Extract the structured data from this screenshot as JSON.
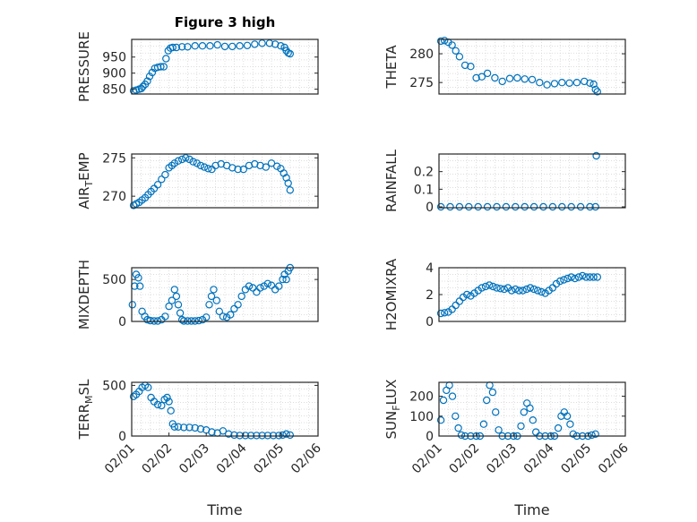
{
  "figure": {
    "title": "Figure 3 high",
    "xlabel": "Time"
  },
  "chart_data": [
    {
      "type": "scatter",
      "ylabel": "PRESSURE",
      "ylim": [
        835,
        1005
      ],
      "yticks": [
        "850",
        "900",
        "950"
      ],
      "ytick_values": [
        850,
        900,
        950
      ],
      "xlim": [
        0,
        5
      ],
      "xticks": [],
      "grid": true,
      "marker_color": "#0072bd",
      "x": [
        0.05,
        0.12,
        0.2,
        0.26,
        0.3,
        0.36,
        0.42,
        0.48,
        0.55,
        0.62,
        0.7,
        0.78,
        0.86,
        0.92,
        0.98,
        1.04,
        1.1,
        1.2,
        1.35,
        1.5,
        1.7,
        1.9,
        2.1,
        2.3,
        2.5,
        2.7,
        2.9,
        3.1,
        3.3,
        3.5,
        3.7,
        3.85,
        4.0,
        4.1,
        4.15,
        4.2,
        4.25
      ],
      "y": [
        845,
        847,
        850,
        852,
        858,
        865,
        875,
        890,
        902,
        915,
        918,
        920,
        920,
        945,
        970,
        978,
        980,
        980,
        982,
        982,
        985,
        985,
        985,
        988,
        983,
        983,
        985,
        986,
        990,
        993,
        993,
        990,
        985,
        980,
        970,
        963,
        960
      ]
    },
    {
      "type": "scatter",
      "ylabel": "THETA",
      "ylim": [
        273,
        282.5
      ],
      "yticks": [
        "275",
        "280"
      ],
      "ytick_values": [
        275,
        280
      ],
      "xlim": [
        0,
        5
      ],
      "xticks": [],
      "grid": true,
      "marker_color": "#0072bd",
      "x": [
        0.05,
        0.15,
        0.25,
        0.35,
        0.45,
        0.55,
        0.7,
        0.85,
        1.0,
        1.15,
        1.3,
        1.5,
        1.7,
        1.9,
        2.1,
        2.3,
        2.5,
        2.7,
        2.9,
        3.1,
        3.3,
        3.5,
        3.7,
        3.9,
        4.05,
        4.15,
        4.2,
        4.25
      ],
      "y": [
        282.2,
        282.3,
        282.0,
        281.5,
        280.5,
        279.5,
        278.0,
        277.8,
        275.8,
        276.0,
        276.6,
        275.8,
        275.2,
        275.7,
        275.8,
        275.6,
        275.5,
        275.0,
        274.6,
        274.8,
        275.0,
        274.9,
        275.0,
        275.2,
        274.9,
        274.7,
        273.8,
        273.4
      ]
    },
    {
      "type": "scatter",
      "ylabel": "AIR_TEMP",
      "ylim": [
        268.5,
        275.5
      ],
      "yticks": [
        "270",
        "275"
      ],
      "ytick_values": [
        270,
        275
      ],
      "xlim": [
        0,
        5
      ],
      "xticks": [],
      "grid": true,
      "marker_color": "#0072bd",
      "x": [
        0.05,
        0.12,
        0.2,
        0.28,
        0.36,
        0.44,
        0.52,
        0.6,
        0.7,
        0.8,
        0.9,
        1.0,
        1.08,
        1.15,
        1.25,
        1.35,
        1.45,
        1.55,
        1.65,
        1.75,
        1.85,
        1.95,
        2.05,
        2.15,
        2.25,
        2.4,
        2.55,
        2.7,
        2.85,
        3.0,
        3.15,
        3.3,
        3.45,
        3.6,
        3.75,
        3.9,
        4.0,
        4.08,
        4.15,
        4.2,
        4.25
      ],
      "y": [
        268.8,
        269.0,
        269.2,
        269.5,
        269.8,
        270.2,
        270.6,
        271.0,
        271.5,
        272.2,
        272.8,
        273.7,
        274.0,
        274.3,
        274.6,
        274.8,
        275.0,
        274.8,
        274.5,
        274.3,
        274.0,
        273.8,
        273.6,
        273.5,
        274.0,
        274.2,
        274.0,
        273.7,
        273.5,
        273.5,
        274.0,
        274.2,
        274.0,
        273.8,
        274.3,
        273.9,
        273.6,
        273.0,
        272.4,
        271.7,
        270.8
      ]
    },
    {
      "type": "scatter",
      "ylabel": "RAINFALL",
      "ylim": [
        -0.005,
        0.3
      ],
      "yticks": [
        "0",
        "0.1",
        "0.2"
      ],
      "ytick_values": [
        0,
        0.1,
        0.2
      ],
      "xlim": [
        0,
        5
      ],
      "xticks": [],
      "grid": true,
      "marker_color": "#0072bd",
      "x": [
        0.05,
        0.3,
        0.55,
        0.8,
        1.05,
        1.3,
        1.55,
        1.8,
        2.05,
        2.3,
        2.55,
        2.8,
        3.05,
        3.3,
        3.55,
        3.8,
        4.05,
        4.2,
        4.22
      ],
      "y": [
        0,
        0,
        0,
        0,
        0,
        0,
        0,
        0,
        0,
        0,
        0,
        0,
        0,
        0,
        0,
        0,
        0,
        0,
        0.29
      ]
    },
    {
      "type": "scatter",
      "ylabel": "MIXDEPTH",
      "ylim": [
        0,
        640
      ],
      "yticks": [
        "0",
        "500"
      ],
      "ytick_values": [
        0,
        500
      ],
      "xlim": [
        0,
        5
      ],
      "xticks": [],
      "grid": true,
      "marker_color": "#0072bd",
      "x": [
        0.02,
        0.08,
        0.12,
        0.18,
        0.22,
        0.28,
        0.35,
        0.42,
        0.5,
        0.6,
        0.7,
        0.8,
        0.9,
        1.0,
        1.08,
        1.15,
        1.2,
        1.25,
        1.3,
        1.35,
        1.4,
        1.5,
        1.6,
        1.7,
        1.8,
        1.9,
        2.0,
        2.08,
        2.14,
        2.2,
        2.28,
        2.35,
        2.45,
        2.55,
        2.65,
        2.75,
        2.85,
        2.95,
        3.05,
        3.15,
        3.25,
        3.35,
        3.45,
        3.55,
        3.65,
        3.75,
        3.85,
        3.95,
        4.05,
        4.1,
        4.15,
        4.2,
        4.25
      ],
      "y": [
        200,
        420,
        560,
        520,
        420,
        120,
        60,
        20,
        10,
        5,
        5,
        20,
        60,
        180,
        250,
        380,
        300,
        200,
        100,
        20,
        5,
        5,
        5,
        5,
        10,
        20,
        50,
        200,
        300,
        380,
        250,
        120,
        60,
        50,
        80,
        150,
        200,
        300,
        380,
        420,
        400,
        350,
        400,
        420,
        450,
        430,
        380,
        420,
        500,
        560,
        500,
        600,
        640
      ]
    },
    {
      "type": "scatter",
      "ylabel": "H2OMIXRA",
      "ylim": [
        0,
        4
      ],
      "yticks": [
        "0",
        "2",
        "4"
      ],
      "ytick_values": [
        0,
        2,
        4
      ],
      "xlim": [
        0,
        5
      ],
      "xticks": [],
      "grid": true,
      "marker_color": "#0072bd",
      "x": [
        0.05,
        0.15,
        0.25,
        0.35,
        0.45,
        0.55,
        0.65,
        0.75,
        0.85,
        0.95,
        1.05,
        1.15,
        1.25,
        1.35,
        1.45,
        1.55,
        1.65,
        1.75,
        1.85,
        1.95,
        2.05,
        2.15,
        2.25,
        2.35,
        2.45,
        2.55,
        2.65,
        2.75,
        2.85,
        2.95,
        3.05,
        3.15,
        3.25,
        3.35,
        3.45,
        3.55,
        3.65,
        3.75,
        3.85,
        3.95,
        4.05,
        4.15,
        4.25
      ],
      "y": [
        0.6,
        0.65,
        0.7,
        0.9,
        1.2,
        1.5,
        1.8,
        2.0,
        1.9,
        2.1,
        2.3,
        2.5,
        2.6,
        2.7,
        2.6,
        2.5,
        2.45,
        2.4,
        2.5,
        2.3,
        2.4,
        2.3,
        2.3,
        2.4,
        2.5,
        2.4,
        2.3,
        2.2,
        2.1,
        2.3,
        2.5,
        2.8,
        3.0,
        3.1,
        3.2,
        3.3,
        3.2,
        3.3,
        3.4,
        3.3,
        3.3,
        3.3,
        3.3
      ]
    },
    {
      "type": "scatter",
      "ylabel": "TERR_MSL",
      "ylim": [
        0,
        530
      ],
      "yticks": [
        "0",
        "500"
      ],
      "ytick_values": [
        0,
        500
      ],
      "xticks": [
        "02/01",
        "02/02",
        "02/03",
        "02/04",
        "02/05",
        "02/06"
      ],
      "xtick_values": [
        0,
        1,
        2,
        3,
        4,
        5
      ],
      "xlim": [
        0,
        5
      ],
      "grid": true,
      "marker_color": "#0072bd",
      "x": [
        0.05,
        0.12,
        0.2,
        0.28,
        0.36,
        0.44,
        0.52,
        0.6,
        0.7,
        0.8,
        0.88,
        0.95,
        1.0,
        1.05,
        1.1,
        1.15,
        1.25,
        1.4,
        1.55,
        1.7,
        1.85,
        2.0,
        2.15,
        2.3,
        2.45,
        2.6,
        2.75,
        2.9,
        3.05,
        3.2,
        3.35,
        3.5,
        3.65,
        3.8,
        3.95,
        4.05,
        4.15,
        4.25
      ],
      "y": [
        390,
        410,
        440,
        480,
        500,
        480,
        380,
        340,
        310,
        300,
        360,
        380,
        340,
        250,
        120,
        90,
        90,
        85,
        85,
        80,
        70,
        60,
        40,
        30,
        50,
        20,
        10,
        5,
        5,
        5,
        5,
        5,
        5,
        5,
        5,
        10,
        20,
        10
      ]
    },
    {
      "type": "scatter",
      "ylabel": "SUN_FLUX",
      "ylim": [
        0,
        270
      ],
      "yticks": [
        "0",
        "100",
        "200"
      ],
      "ytick_values": [
        0,
        100,
        200
      ],
      "xticks": [
        "02/01",
        "02/02",
        "02/03",
        "02/04",
        "02/05",
        "02/06"
      ],
      "xtick_values": [
        0,
        1,
        2,
        3,
        4,
        5
      ],
      "xlim": [
        0,
        5
      ],
      "grid": true,
      "marker_color": "#0072bd",
      "x": [
        0.05,
        0.12,
        0.2,
        0.28,
        0.36,
        0.44,
        0.52,
        0.6,
        0.7,
        0.85,
        1.0,
        1.1,
        1.2,
        1.28,
        1.36,
        1.44,
        1.52,
        1.6,
        1.7,
        1.85,
        2.0,
        2.1,
        2.2,
        2.28,
        2.36,
        2.44,
        2.52,
        2.6,
        2.7,
        2.85,
        3.0,
        3.1,
        3.2,
        3.28,
        3.36,
        3.44,
        3.52,
        3.6,
        3.7,
        3.85,
        4.0,
        4.1,
        4.2
      ],
      "y": [
        80,
        180,
        230,
        255,
        200,
        100,
        40,
        5,
        0,
        0,
        0,
        0,
        60,
        180,
        255,
        220,
        120,
        30,
        0,
        0,
        0,
        0,
        50,
        120,
        165,
        140,
        80,
        20,
        0,
        0,
        0,
        0,
        40,
        100,
        120,
        100,
        60,
        10,
        0,
        0,
        0,
        5,
        10
      ]
    }
  ]
}
